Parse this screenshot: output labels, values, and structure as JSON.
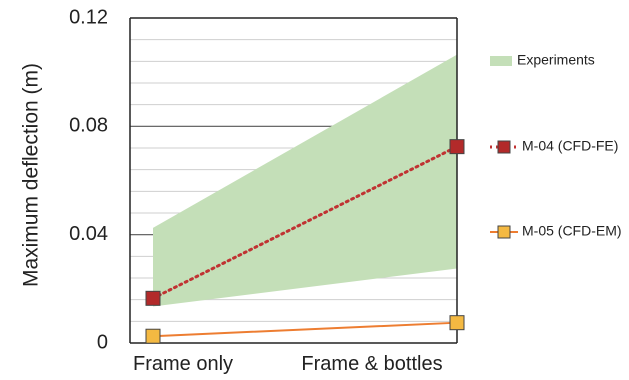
{
  "chart_data": {
    "type": "line",
    "title": "",
    "xlabel": "",
    "ylabel": "Maximum deflection (m)",
    "categories": [
      "Frame only",
      "Frame & bottles"
    ],
    "ylim": [
      0,
      0.12
    ],
    "yticks": [
      0,
      0.04,
      0.08,
      0.12
    ],
    "ytick_labels": [
      "0",
      "0.04",
      "0.08",
      "0.12"
    ],
    "grid": true,
    "legend_position": "right",
    "band": {
      "name": "Experiments",
      "lower": [
        0.0135,
        0.0275
      ],
      "upper": [
        0.0425,
        0.1065
      ],
      "color": "#c4dfb8"
    },
    "series": [
      {
        "name": "M-04 (CFD-FE)",
        "values": [
          0.0165,
          0.0725
        ],
        "color": "#c03232",
        "marker_color": "#b22a2a",
        "line_style": "dotted"
      },
      {
        "name": "M-05 (CFD-EM)",
        "values": [
          0.0025,
          0.0075
        ],
        "color": "#ed7d31",
        "marker_color": "#f4b942",
        "line_style": "solid"
      }
    ]
  }
}
